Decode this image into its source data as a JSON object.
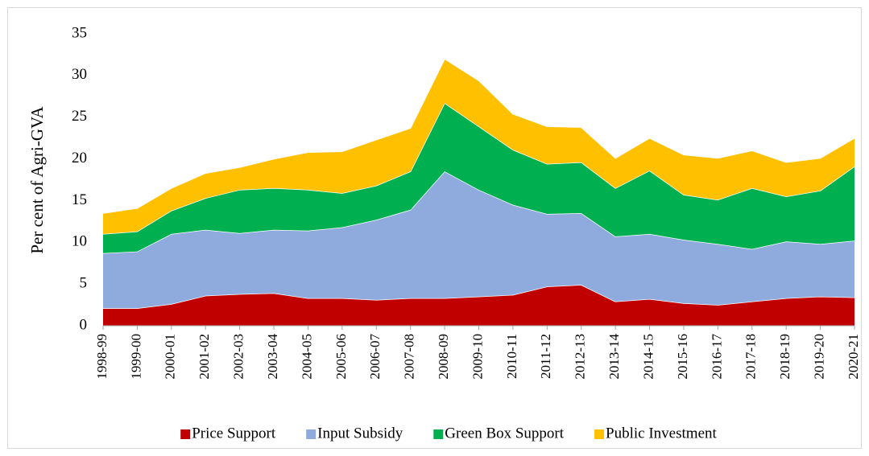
{
  "chart_data": {
    "type": "stacked-area",
    "y_label": "Per cent of Agri-GVA",
    "categories": [
      "1998-99",
      "1999-00",
      "2000-01",
      "2001-02",
      "2002-03",
      "2003-04",
      "2004-05",
      "2005-06",
      "2006-07",
      "2007-08",
      "2008-09",
      "2009-10",
      "2010-11",
      "2011-12",
      "2012-13",
      "2013-14",
      "2014-15",
      "2015-16",
      "2016-17",
      "2017-18",
      "2018-19",
      "2019-20",
      "2020-21"
    ],
    "series": [
      {
        "name": "Price Support",
        "color": "#c00000",
        "values": [
          2.1,
          2.1,
          2.6,
          3.6,
          3.8,
          3.9,
          3.3,
          3.3,
          3.1,
          3.3,
          3.3,
          3.5,
          3.7,
          4.7,
          4.9,
          2.9,
          3.2,
          2.7,
          2.5,
          2.9,
          3.3,
          3.5,
          3.4
        ]
      },
      {
        "name": "Input Subsidy",
        "color": "#8faadc",
        "values": [
          6.6,
          6.8,
          8.4,
          7.9,
          7.3,
          7.6,
          8.1,
          8.5,
          9.6,
          10.6,
          15.2,
          12.8,
          10.8,
          8.7,
          8.6,
          7.8,
          7.8,
          7.6,
          7.3,
          6.3,
          6.8,
          6.3,
          6.8
        ]
      },
      {
        "name": "Green Box Support",
        "color": "#00b050",
        "values": [
          2.3,
          2.4,
          2.8,
          3.8,
          5.2,
          5.0,
          4.9,
          4.1,
          4.1,
          4.6,
          8.2,
          7.6,
          6.6,
          6.0,
          6.1,
          5.8,
          7.6,
          5.4,
          5.3,
          7.3,
          5.4,
          6.4,
          8.9
        ]
      },
      {
        "name": "Public Investment",
        "color": "#ffc000",
        "values": [
          2.5,
          2.8,
          2.7,
          3.0,
          2.7,
          3.5,
          4.5,
          5.0,
          5.5,
          5.2,
          5.3,
          5.5,
          4.3,
          4.5,
          4.2,
          3.6,
          3.9,
          4.8,
          5.0,
          4.5,
          4.1,
          3.9,
          3.4
        ]
      }
    ],
    "ylim": [
      0,
      35
    ],
    "yticks": [
      0,
      5,
      10,
      15,
      20,
      25,
      30,
      35
    ],
    "grid": false,
    "legend": "bottom"
  }
}
